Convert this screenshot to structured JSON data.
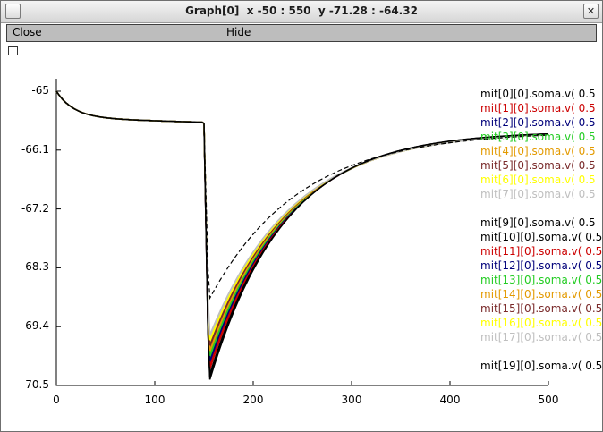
{
  "window": {
    "title": "Graph[0]  x -50 : 550  y -71.28 : -64.32",
    "close_glyph": "✕"
  },
  "menu": {
    "close": "Close",
    "hide": "Hide"
  },
  "chart_data": {
    "type": "line",
    "xlim": [
      0,
      500
    ],
    "ylim": [
      -70.5,
      -64.9
    ],
    "x_ticks": [
      "0",
      "100",
      "200",
      "300",
      "400",
      "500"
    ],
    "y_ticks": [
      "-65",
      "-66.1",
      "-67.2",
      "-68.3",
      "-69.4",
      "-70.5"
    ],
    "dashed_series": "mit[0][0].soma.v( 0.5",
    "series": [
      {
        "name": "mit[0][0].soma.v( 0.5",
        "color": "#000000",
        "dashed": true,
        "min": -68.9,
        "baseline": -65.55
      },
      {
        "name": "mit[1][0].soma.v( 0.5",
        "color": "#cc0000",
        "min": -70.25
      },
      {
        "name": "mit[2][0].soma.v( 0.5",
        "color": "#00007a",
        "min": -70.15
      },
      {
        "name": "mit[3][0].soma.v( 0.5",
        "color": "#22cc22",
        "min": -70.05
      },
      {
        "name": "mit[4][0].soma.v( 0.5",
        "color": "#e39a00",
        "min": -69.95
      },
      {
        "name": "mit[5][0].soma.v( 0.5",
        "color": "#7a2a2a",
        "min": -69.85
      },
      {
        "name": "mit[6][0].soma.v( 0.5",
        "color": "#ffff00",
        "min": -69.75
      },
      {
        "name": "mit[7][0].soma.v( 0.5",
        "color": "#bfbfbf",
        "min": -69.65
      },
      {
        "name": "mit[9][0].soma.v( 0.5",
        "color": "#000000",
        "min": -70.4
      },
      {
        "name": "mit[10][0].soma.v( 0.5",
        "color": "#000000",
        "min": -70.35
      },
      {
        "name": "mit[11][0].soma.v( 0.5",
        "color": "#cc0000",
        "min": -70.2
      },
      {
        "name": "mit[12][0].soma.v( 0.5",
        "color": "#00007a",
        "min": -70.1
      },
      {
        "name": "mit[13][0].soma.v( 0.5",
        "color": "#22cc22",
        "min": -70.0
      },
      {
        "name": "mit[14][0].soma.v( 0.5",
        "color": "#e39a00",
        "min": -69.9
      },
      {
        "name": "mit[15][0].soma.v( 0.5",
        "color": "#7a2a2a",
        "min": -69.8
      },
      {
        "name": "mit[16][0].soma.v( 0.5",
        "color": "#ffff00",
        "min": -69.7
      },
      {
        "name": "mit[17][0].soma.v( 0.5",
        "color": "#bfbfbf",
        "min": -69.6
      },
      {
        "name": "mit[19][0].soma.v( 0.5",
        "color": "#000000",
        "min": -70.45
      }
    ]
  }
}
